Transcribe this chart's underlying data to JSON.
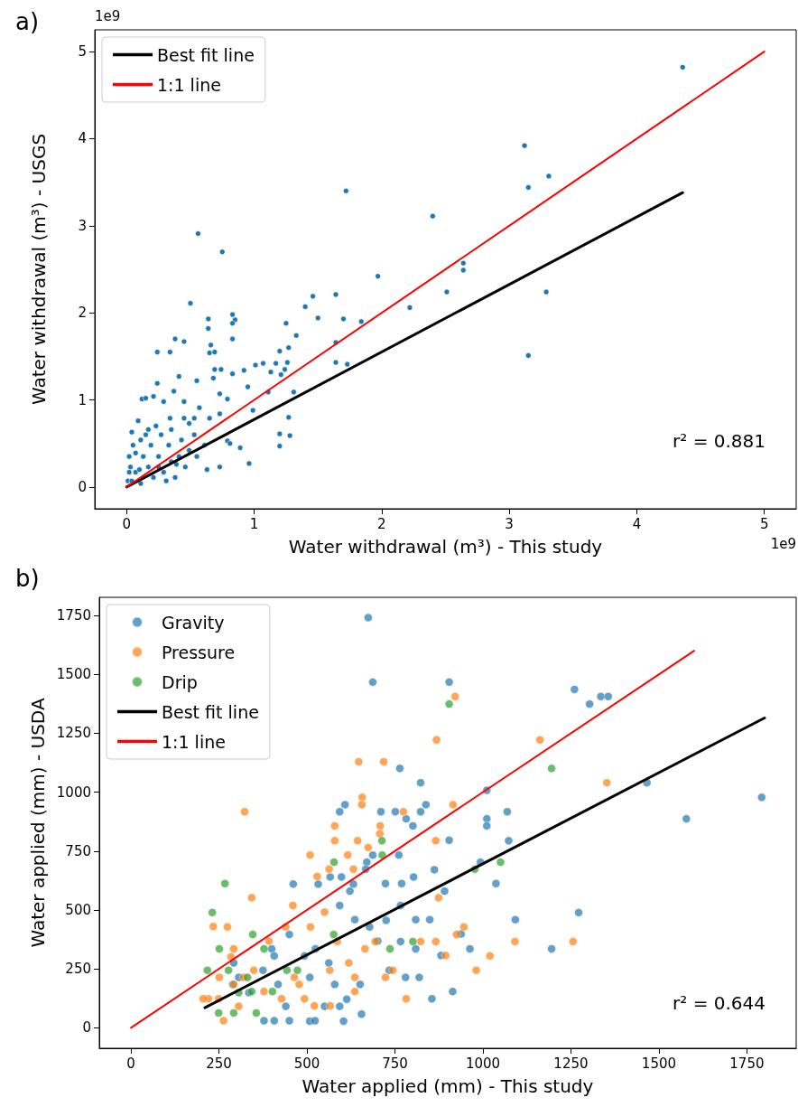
{
  "chart_data": [
    {
      "type": "scatter",
      "title": "a)",
      "xlabel": "Water withdrawal (m³) - This study",
      "ylabel": "Water withdrawal (m³) - USGS",
      "annotations": [
        "1e9",
        "1e9",
        "r² = 0.881"
      ],
      "xlim": [
        -0.25,
        5.25
      ],
      "ylim": [
        -0.25,
        5.25
      ],
      "xticks": [
        0,
        1,
        2,
        3,
        4,
        5
      ],
      "yticks": [
        0,
        1,
        2,
        3,
        4,
        5
      ],
      "legend": "top left",
      "marker": "circle",
      "series": [
        {
          "color": "#1f77b4",
          "x": [
            4.36,
            3.12,
            3.15,
            3.31,
            3.29,
            3.15,
            2.64,
            2.64,
            2.4,
            2.51,
            2.22,
            1.97,
            1.72,
            1.84,
            1.7,
            1.64,
            1.64,
            1.64,
            1.73,
            1.46,
            1.4,
            1.5,
            1.33,
            1.25,
            1.27,
            1.2,
            1.26,
            1.24,
            1.21,
            1.17,
            1.07,
            1.01,
            1.13,
            1.11,
            1.31,
            1.27,
            1.28,
            1.2,
            1.2,
            0.99,
            0.96,
            0.95,
            0.92,
            0.83,
            0.83,
            0.85,
            0.83,
            0.83,
            0.75,
            0.56,
            0.5,
            0.64,
            0.64,
            0.38,
            0.45,
            0.24,
            0.34,
            0.65,
            0.69,
            0.66,
            0.41,
            0.24,
            0.12,
            0.15,
            0.09,
            0.21,
            0.55,
            0.68,
            0.74,
            0.69,
            0.73,
            0.79,
            0.73,
            0.73,
            0.63,
            0.79,
            0.81,
            0.89,
            0.65,
            0.57,
            0.45,
            0.37,
            0.29,
            0.34,
            0.49,
            0.01,
            0.03,
            0.02,
            0.05,
            0.07,
            0.11,
            0.13,
            0.15,
            0.17,
            0.19,
            0.21,
            0.25,
            0.27,
            0.29,
            0.33,
            0.35,
            0.38,
            0.41,
            0.43,
            0.46,
            0.49,
            0.53,
            0.55,
            0.61,
            0.11,
            0.17,
            0.04,
            0.07,
            0.1,
            0.25,
            0.31,
            0.39,
            0.23,
            0.35,
            0.45,
            0.53,
            0.02,
            0.04
          ],
          "values": [
            4.82,
            3.92,
            3.44,
            3.57,
            2.24,
            1.51,
            2.57,
            2.49,
            3.11,
            2.24,
            2.06,
            2.42,
            3.4,
            1.9,
            1.93,
            2.21,
            1.66,
            1.43,
            1.41,
            2.19,
            2.07,
            1.94,
            1.74,
            1.88,
            1.6,
            1.56,
            1.43,
            1.35,
            1.29,
            1.42,
            1.42,
            1.4,
            1.32,
            1.09,
            1.09,
            0.8,
            0.59,
            0.61,
            0.47,
            0.88,
            0.27,
            1.15,
            1.34,
            1.3,
            1.7,
            1.92,
            1.98,
            1.88,
            2.7,
            2.91,
            2.11,
            1.93,
            1.82,
            1.7,
            1.67,
            1.55,
            1.55,
            1.54,
            1.55,
            1.63,
            1.27,
            1.19,
            1.01,
            1.02,
            0.76,
            1.04,
            1.22,
            1.25,
            1.35,
            1.35,
            1.07,
            1.01,
            0.84,
            0.23,
            0.2,
            0.53,
            0.5,
            0.45,
            0.79,
            0.91,
            0.98,
            1.1,
            0.98,
            0.79,
            0.73,
            0.07,
            0.23,
            0.35,
            0.48,
            0.17,
            0.04,
            0.35,
            0.6,
            0.23,
            0.48,
            0.11,
            0.35,
            0.6,
            0.17,
            0.48,
            0.29,
            0.11,
            0.35,
            0.54,
            0.23,
            0.42,
            0.6,
            0.35,
            0.48,
            0.54,
            0.66,
            0.63,
            0.39,
            0.2,
            0.23,
            0.07,
            0.26,
            0.7,
            0.66,
            0.79,
            0.79,
            0.17,
            0.07
          ]
        },
        {
          "type": "line",
          "name": "Best fit line",
          "color": "#000000",
          "marker": "none",
          "x": [
            0,
            4.36
          ],
          "values": [
            0,
            3.38
          ]
        },
        {
          "type": "line",
          "name": "1:1 line",
          "color": "#ff0000",
          "marker": "none",
          "x": [
            0,
            5
          ],
          "values": [
            0,
            5
          ]
        }
      ]
    },
    {
      "type": "scatter",
      "title": "b)",
      "xlabel": "Water applied (mm) - This study",
      "ylabel": "Water applied (mm) - USDA",
      "annotations": [
        "r² = 0.644"
      ],
      "xlim": [
        -90,
        1890
      ],
      "ylim": [
        -87,
        1827
      ],
      "xticks": [
        0,
        250,
        500,
        750,
        1000,
        1250,
        1500,
        1750
      ],
      "yticks": [
        0,
        250,
        500,
        750,
        1000,
        1250,
        1500,
        1750
      ],
      "legend": "top left",
      "marker": "circle",
      "series": [
        {
          "name": "Gravity",
          "color": "#1f77b4",
          "x": [
            674,
            687,
            904,
            1260,
            1303,
            1335,
            1356,
            764,
            823,
            1466,
            1792,
            1578,
            1011,
            1011,
            1011,
            1069,
            1073,
            904,
            838,
            823,
            710,
            751,
            593,
            608,
            782,
            801,
            993,
            1037,
            1092,
            1272,
            1195,
            862,
            891,
            849,
            809,
            766,
            803,
            769,
            723,
            687,
            761,
            670,
            667,
            622,
            632,
            598,
            566,
            532,
            461,
            593,
            636,
            678,
            725,
            701,
            766,
            809,
            881,
            938,
            963,
            780,
            819,
            914,
            855,
            734,
            651,
            613,
            550,
            593,
            508,
            604,
            523,
            440,
            418,
            375,
            493,
            524,
            450,
            400,
            407,
            306,
            335,
            378,
            450,
            407,
            655,
            579,
            292,
            508,
            562,
            289
          ],
          "values": [
            1741,
            1467,
            1467,
            1436,
            1374,
            1406,
            1406,
            1101,
            1040,
            1040,
            978,
            887,
            1008,
            887,
            857,
            917,
            794,
            796,
            947,
            917,
            917,
            917,
            917,
            947,
            887,
            857,
            703,
            612,
            459,
            489,
            335,
            671,
            580,
            459,
            459,
            519,
            640,
            612,
            612,
            733,
            733,
            703,
            673,
            580,
            610,
            640,
            640,
            610,
            610,
            519,
            459,
            428,
            456,
            368,
            366,
            335,
            307,
            398,
            335,
            214,
            214,
            154,
            123,
            244,
            184,
            121,
            91,
            91,
            28,
            28,
            30,
            91,
            184,
            244,
            305,
            335,
            396,
            335,
            305,
            214,
            149,
            30,
            30,
            30,
            58,
            184,
            275,
            214,
            275,
            184
          ]
        },
        {
          "name": "Pressure",
          "color": "#ff7f0e",
          "x": [
            921,
            868,
            1162,
            1352,
            647,
            718,
            657,
            656,
            915,
            774,
            323,
            579,
            708,
            707,
            579,
            644,
            509,
            616,
            866,
            674,
            632,
            563,
            529,
            874,
            823,
            946,
            925,
            1020,
            981,
            1091,
            1256,
            343,
            274,
            234,
            460,
            510,
            550,
            586,
            694,
            744,
            782,
            636,
            565,
            478,
            493,
            428,
            306,
            263,
            249,
            220,
            292,
            349,
            392,
            440,
            292,
            205,
            251,
            320,
            378,
            464,
            521,
            566,
            636,
            723,
            619,
            665,
            866,
            894,
            284
          ],
          "values": [
            1406,
            1222,
            1222,
            1040,
            1129,
            1129,
            978,
            947,
            947,
            917,
            917,
            857,
            857,
            824,
            794,
            794,
            733,
            733,
            794,
            765,
            673,
            673,
            642,
            552,
            366,
            428,
            396,
            305,
            244,
            366,
            366,
            552,
            428,
            430,
            519,
            428,
            491,
            366,
            366,
            244,
            123,
            154,
            244,
            184,
            123,
            123,
            91,
            30,
            123,
            123,
            184,
            244,
            368,
            428,
            335,
            123,
            214,
            214,
            154,
            214,
            93,
            93,
            214,
            214,
            275,
            335,
            366,
            307,
            301
          ]
        },
        {
          "name": "Drip",
          "color": "#2ca02c",
          "x": [
            904,
            1195,
            1050,
            977,
            713,
            714,
            577,
            576,
            801,
            736,
            267,
            231,
            251,
            217,
            346,
            378,
            443,
            331,
            306,
            249,
            292,
            356,
            402,
            473,
            277,
            343
          ],
          "values": [
            1374,
            1101,
            703,
            673,
            794,
            733,
            703,
            396,
            366,
            335,
            612,
            489,
            335,
            244,
            396,
            335,
            244,
            214,
            149,
            63,
            63,
            63,
            154,
            244,
            244,
            154
          ]
        },
        {
          "type": "line",
          "name": "Best fit line",
          "color": "#000000",
          "marker": "none",
          "x": [
            210,
            1800
          ],
          "values": [
            85,
            1315
          ]
        },
        {
          "type": "line",
          "name": "1:1 line",
          "color": "#ff0000",
          "marker": "none",
          "x": [
            0,
            1600
          ],
          "values": [
            0,
            1600
          ]
        }
      ]
    }
  ]
}
